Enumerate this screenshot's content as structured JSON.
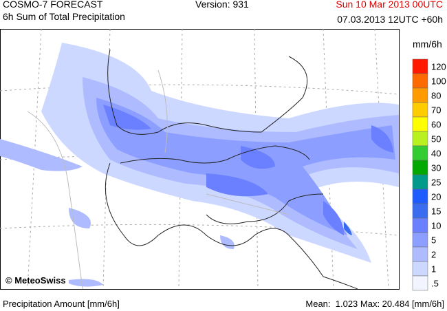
{
  "header": {
    "title": "COSMO-7 FORECAST",
    "subtitle": "6h Sum of Total Precipitation",
    "version": "Version: 931",
    "valid_time": "Sun 10 Mar 2013 00UTC",
    "run_time": "07.03.2013 12UTC +60h"
  },
  "map": {
    "copyright": "© MeteoSwiss"
  },
  "legend": {
    "unit": "mm/6h",
    "items": [
      {
        "label": "120",
        "color": "#ff1a00"
      },
      {
        "label": "100",
        "color": "#ff6a00"
      },
      {
        "label": "80",
        "color": "#ff9a00"
      },
      {
        "label": "70",
        "color": "#ffcc00"
      },
      {
        "label": "60",
        "color": "#ffff00"
      },
      {
        "label": "50",
        "color": "#b8f020"
      },
      {
        "label": "40",
        "color": "#33cc33"
      },
      {
        "label": "30",
        "color": "#00a800"
      },
      {
        "label": "25",
        "color": "#009a8a"
      },
      {
        "label": "20",
        "color": "#1e5cff"
      },
      {
        "label": "15",
        "color": "#3a6cf0"
      },
      {
        "label": "10",
        "color": "#6a80ff"
      },
      {
        "label": "5",
        "color": "#8c9eff"
      },
      {
        "label": "2",
        "color": "#aebcff"
      },
      {
        "label": "1",
        "color": "#ccd8ff"
      },
      {
        "label": ".5",
        "color": "#f2f5ff"
      }
    ]
  },
  "footer": {
    "quantity": "Precipitation Amount [mm/6h]",
    "stats": "Mean:  1.023 Max: 20.484 [mm/6h]"
  }
}
